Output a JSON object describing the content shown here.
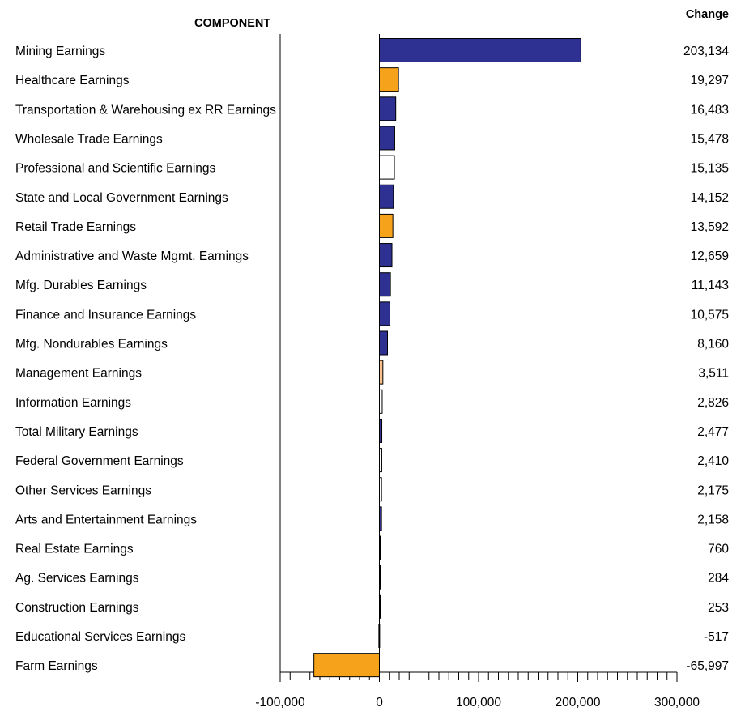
{
  "header": {
    "component_label": "COMPONENT",
    "change_label": "Change"
  },
  "colors": {
    "blue": "#2e3192",
    "orange": "#f7a21b",
    "peach": "#f9c089",
    "white": "#ffffff",
    "outline": "#000000"
  },
  "chart_data": {
    "type": "bar",
    "orientation": "horizontal",
    "categories": [
      "Mining Earnings",
      "Healthcare Earnings",
      "Transportation & Warehousing ex RR Earnings",
      "Wholesale Trade Earnings",
      "Professional and Scientific Earnings",
      "State and Local Government Earnings",
      "Retail Trade Earnings",
      "Administrative and Waste Mgmt. Earnings",
      "Mfg. Durables Earnings",
      "Finance and Insurance Earnings",
      "Mfg. Nondurables Earnings",
      "Management Earnings",
      "Information Earnings",
      "Total Military Earnings",
      "Federal Government Earnings",
      "Other Services Earnings",
      "Arts and Entertainment Earnings",
      "Real Estate Earnings",
      "Ag. Services Earnings",
      "Construction Earnings",
      "Educational Services Earnings",
      "Farm Earnings"
    ],
    "values": [
      203134,
      19297,
      16483,
      15478,
      15135,
      14152,
      13592,
      12659,
      11143,
      10575,
      8160,
      3511,
      2826,
      2477,
      2410,
      2175,
      2158,
      760,
      284,
      253,
      -517,
      -65997
    ],
    "value_labels": [
      "203,134",
      "19,297",
      "16,483",
      "15,478",
      "15,135",
      "14,152",
      "13,592",
      "12,659",
      "11,143",
      "10,575",
      "8,160",
      "3,511",
      "2,826",
      "2,477",
      "2,410",
      "2,175",
      "2,158",
      "760",
      "284",
      "253",
      "-517",
      "-65,997"
    ],
    "bar_colors": [
      "blue",
      "orange",
      "blue",
      "blue",
      "white",
      "blue",
      "orange",
      "blue",
      "blue",
      "blue",
      "blue",
      "peach",
      "white",
      "blue",
      "white",
      "white",
      "blue",
      "peach",
      "white",
      "white",
      "white",
      "orange"
    ],
    "xlim": [
      -100000,
      300000
    ],
    "xticks": [
      -100000,
      0,
      100000,
      200000,
      300000
    ],
    "xtick_labels": [
      "-100,000",
      "0",
      "100,000",
      "200,000",
      "300,000"
    ],
    "minor_tick_step": 10000,
    "grid": false,
    "legend": "none"
  }
}
